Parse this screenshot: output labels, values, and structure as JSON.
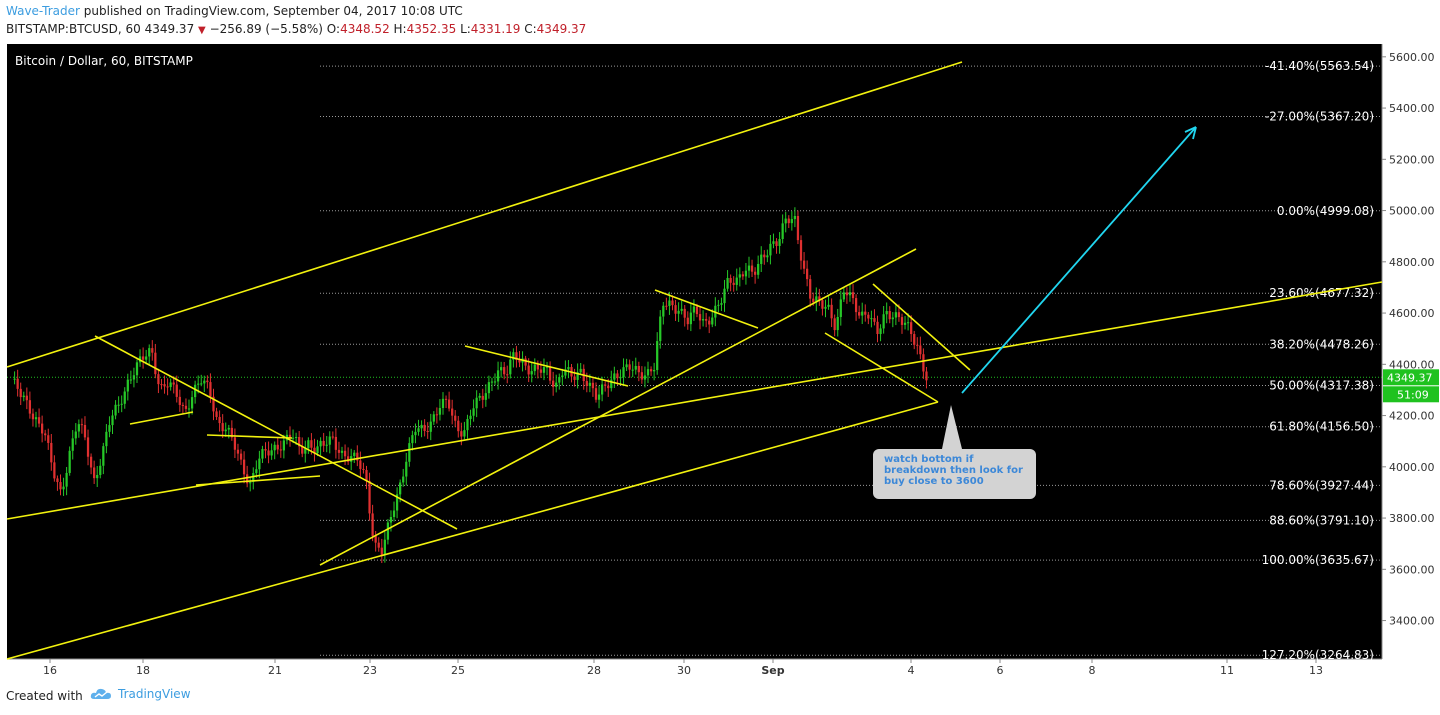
{
  "header": {
    "author": "Wave-Trader",
    "published": " published on TradingView.com, September 04, 2017 10:08 UTC",
    "symbol": "BITSTAMP:BTCUSD, 60",
    "last": "4349.37",
    "down_icon": "down-triangle-icon",
    "change": "−256.89 (−5.58%)",
    "o_label": "O:",
    "o": "4348.52",
    "h_label": "H:",
    "h": "4352.35",
    "l_label": "L:",
    "l": "4331.19",
    "c_label": "C:",
    "c": "4349.37"
  },
  "footer": {
    "created": "Created with",
    "brand": "TradingView",
    "brand_icon": "tradingview-cloud-icon"
  },
  "callout": {
    "text": "watch bottom if\nbreakdown then look for\nbuy close to 3600"
  },
  "colors": {
    "background": "#000000",
    "up": "#26c828",
    "down": "#e03030",
    "trendline": "#f2f20e",
    "target_arrow": "#21d6f0",
    "price_badge": "#1fc21f",
    "callout_text": "#3c88d8"
  },
  "chart_data": {
    "type": "candlestick",
    "title": "Bitcoin / Dollar, 60, BITSTAMP",
    "ylim": [
      3250,
      5650
    ],
    "y_ticks": [
      3400,
      3600,
      3800,
      4000,
      4200,
      4400,
      4600,
      4800,
      5000,
      5200,
      5400,
      5600
    ],
    "y_tick_labels": [
      "3400.00",
      "3600.00",
      "3800.00",
      "4000.00",
      "4200.00",
      "4400.00",
      "4600.00",
      "4800.00",
      "5000.00",
      "5200.00",
      "5400.00",
      "5600.00"
    ],
    "x_tick_labels": [
      "16",
      "18",
      "21",
      "23",
      "25",
      "28",
      "30",
      "Sep",
      "4",
      "6",
      "8",
      "11",
      "13"
    ],
    "last_price": "4349.37",
    "countdown": "51:09",
    "fib_levels": [
      {
        "label": "-41.40%(5563.54)",
        "price": 5563.54
      },
      {
        "label": "-27.00%(5367.20)",
        "price": 5367.2
      },
      {
        "label": "0.00%(4999.08)",
        "price": 4999.08
      },
      {
        "label": "23.60%(4677.32)",
        "price": 4677.32
      },
      {
        "label": "38.20%(4478.26)",
        "price": 4478.26
      },
      {
        "label": "50.00%(4317.38)",
        "price": 4317.38
      },
      {
        "label": "61.80%(4156.50)",
        "price": 4156.5
      },
      {
        "label": "78.60%(3927.44)",
        "price": 3927.44
      },
      {
        "label": "88.60%(3791.10)",
        "price": 3791.1
      },
      {
        "label": "100.00%(3635.67)",
        "price": 3635.67
      },
      {
        "label": "127.20%(3264.83)",
        "price": 3264.83
      }
    ],
    "price_path": [
      4340,
      4280,
      4240,
      4190,
      4130,
      3980,
      3900,
      4050,
      4170,
      4100,
      3950,
      4050,
      4180,
      4240,
      4330,
      4380,
      4420,
      4460,
      4310,
      4320,
      4280,
      4220,
      4290,
      4330,
      4300,
      4180,
      4150,
      4080,
      4000,
      3940,
      4030,
      4050,
      4080,
      4100,
      4120,
      4060,
      4100,
      4070,
      4080,
      4110,
      4060,
      4030,
      4020,
      3960,
      3700,
      3660,
      3800,
      3920,
      4050,
      4140,
      4140,
      4190,
      4240,
      4240,
      4150,
      4150,
      4230,
      4260,
      4330,
      4380,
      4350,
      4440,
      4420,
      4370,
      4370,
      4380,
      4320,
      4380,
      4340,
      4380,
      4330,
      4260,
      4310,
      4360,
      4370,
      4380,
      4370,
      4370,
      4390,
      4630,
      4640,
      4620,
      4560,
      4610,
      4570,
      4590,
      4630,
      4730,
      4740,
      4770,
      4740,
      4820,
      4870,
      4870,
      4960,
      4980,
      4790,
      4640,
      4640,
      4640,
      4540,
      4680,
      4660,
      4600,
      4590,
      4510,
      4610,
      4600,
      4560,
      4530,
      4470,
      4350
    ]
  }
}
